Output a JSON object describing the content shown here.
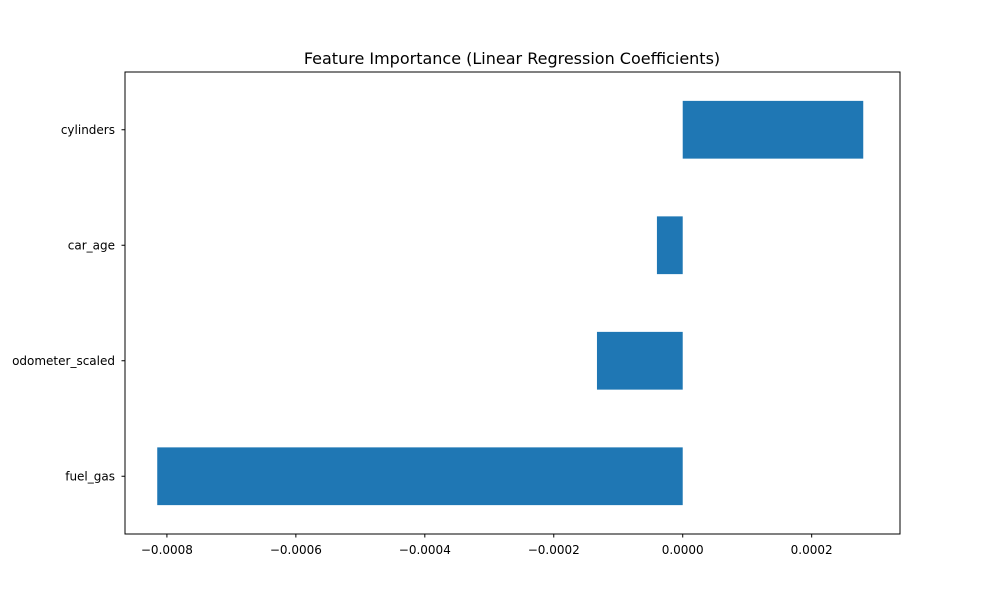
{
  "chart_data": {
    "type": "bar",
    "orientation": "horizontal",
    "title": "Feature Importance (Linear Regression Coefficients)",
    "xlabel": "",
    "ylabel": "",
    "categories": [
      "fuel_gas",
      "odometer_scaled",
      "car_age",
      "cylinders"
    ],
    "values": [
      -0.000815,
      -0.000133,
      -4e-05,
      0.00028
    ],
    "xlim": [
      -0.000865,
      0.000337
    ],
    "xticks": [
      -0.0008,
      -0.0006,
      -0.0004,
      -0.0002,
      0.0,
      0.0002
    ],
    "xtick_labels": [
      "−0.0008",
      "−0.0006",
      "−0.0004",
      "−0.0002",
      "0.0000",
      "0.0002"
    ],
    "bar_color": "#1f77b4",
    "grid": false,
    "legend": "none"
  }
}
